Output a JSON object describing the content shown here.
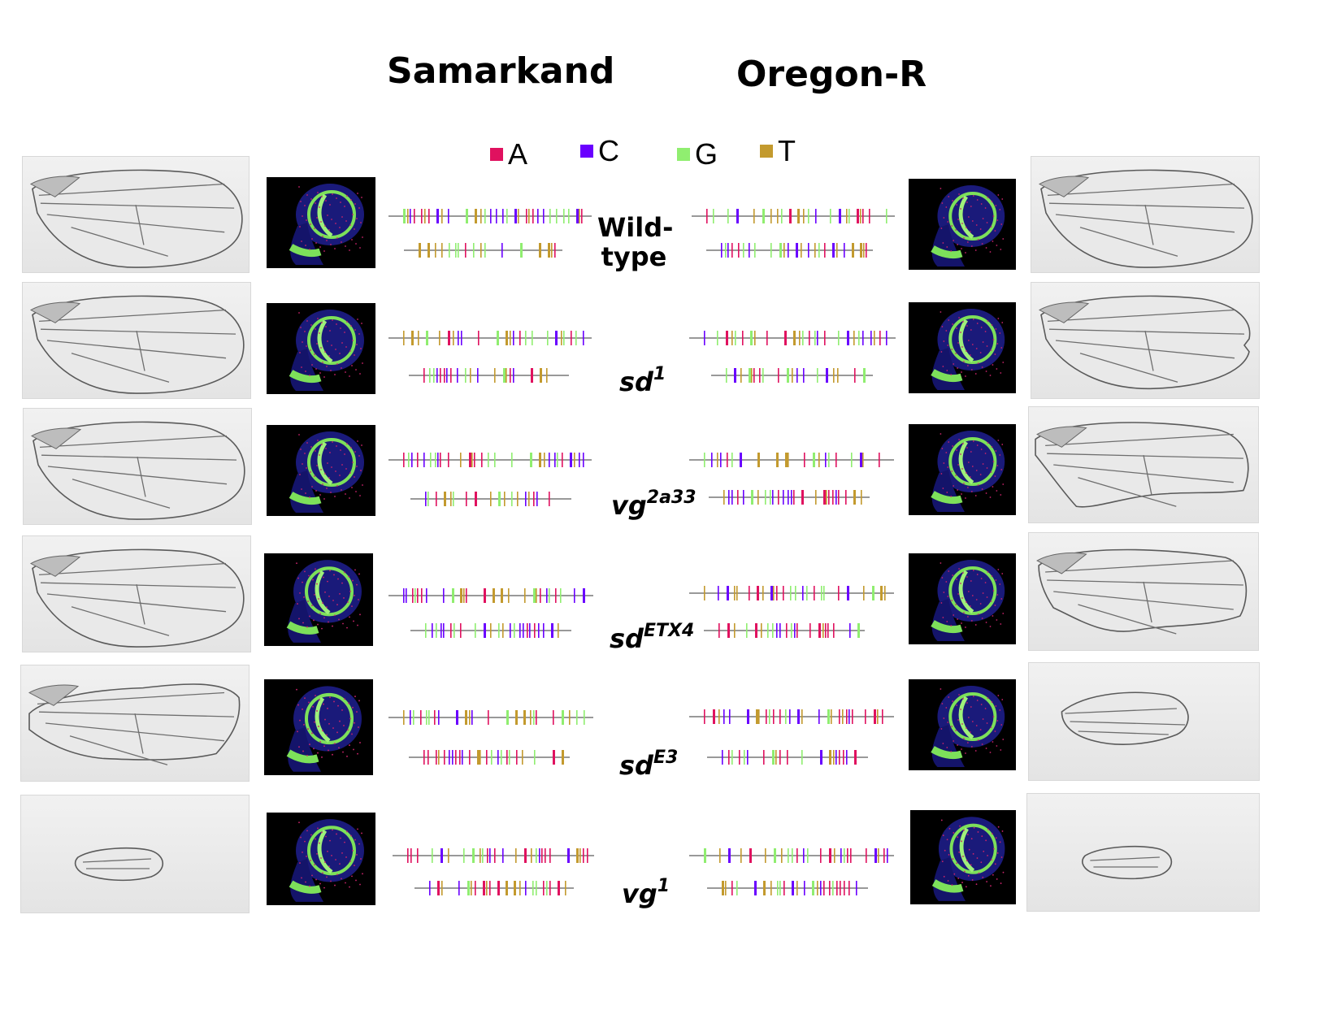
{
  "titles": {
    "left": "Samarkand",
    "right": "Oregon-R"
  },
  "legend": [
    {
      "label": "A",
      "color": "#e0115f"
    },
    {
      "label": "C",
      "color": "#6a00ff"
    },
    {
      "label": "G",
      "color": "#90ee70"
    },
    {
      "label": "T",
      "color": "#c39a2e"
    }
  ],
  "genotypes": [
    {
      "line1": "Wild-",
      "line2": "type"
    },
    {
      "base": "sd",
      "sup": "1"
    },
    {
      "base": "vg",
      "sup": "2a33"
    },
    {
      "base": "sd",
      "sup": "ETX4"
    },
    {
      "base": "sd",
      "sup": "E3"
    },
    {
      "base": "vg",
      "sup": "1"
    }
  ]
}
